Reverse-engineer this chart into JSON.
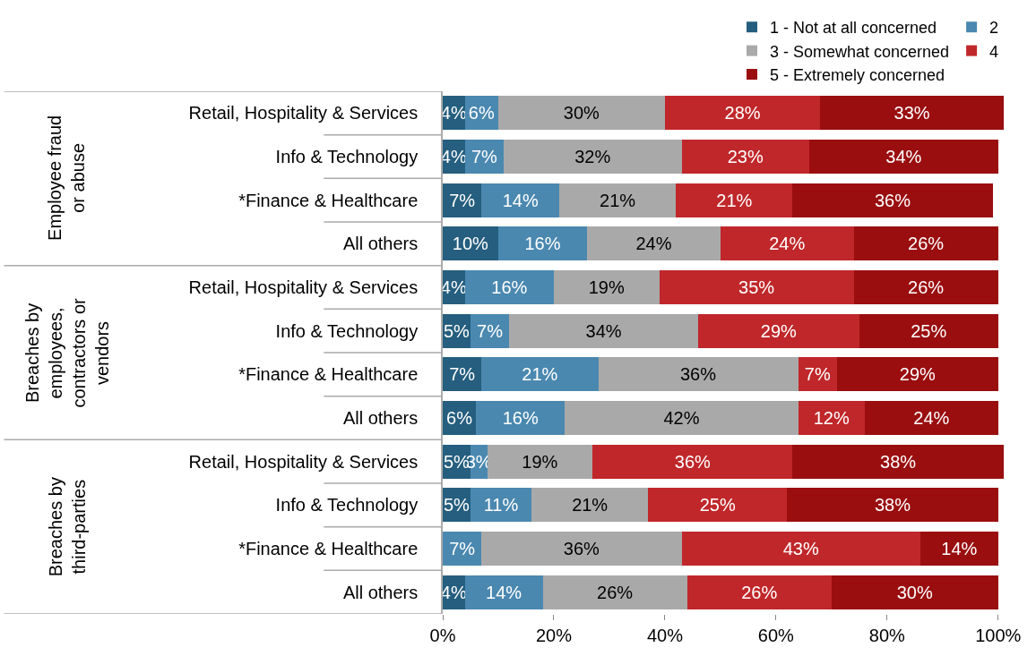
{
  "chart_data": {
    "type": "bar",
    "orientation": "horizontal",
    "stacked": true,
    "legend": "top",
    "categories": [
      "Retail, Hospitality & Services",
      "Info & Technology",
      "*Finance & Healthcare",
      "All others",
      "Retail, Hospitality & Services",
      "Info & Technology",
      "*Finance & Healthcare",
      "All others",
      "Retail, Hospitality & Services",
      "Info & Technology",
      "*Finance & Healthcare",
      "All others"
    ],
    "annotations": [
      "Employee fraud or abuse",
      "Breaches by employees, contractors or vendors",
      "Breaches by third-parties"
    ],
    "series": [
      {
        "name": "1 - Not at all concerned",
        "color": "#255e7e",
        "values": [
          4,
          4,
          7,
          10,
          4,
          5,
          7,
          6,
          5,
          5,
          0,
          4
        ],
        "value_labels": [
          "4%",
          "4%",
          "7%",
          "10%",
          "4%",
          "5%",
          "7%",
          "6%",
          "5%",
          "5%",
          null,
          "4%"
        ]
      },
      {
        "name": "2",
        "color": "#4a88b0",
        "values": [
          6,
          7,
          14,
          16,
          16,
          7,
          21,
          16,
          3,
          11,
          7,
          14
        ],
        "value_labels": [
          "6%",
          "7%",
          "14%",
          "16%",
          "16%",
          "7%",
          "21%",
          "16%",
          "3%",
          "11%",
          "7%",
          "14%"
        ]
      },
      {
        "name": "3 - Somewhat concerned",
        "color": "#a9a9a9",
        "values": [
          30,
          32,
          21,
          24,
          19,
          34,
          36,
          42,
          19,
          21,
          36,
          26
        ],
        "value_labels": [
          "30%",
          "32%",
          "21%",
          "24%",
          "19%",
          "34%",
          "36%",
          "42%",
          "19%",
          "21%",
          "36%",
          "26%"
        ]
      },
      {
        "name": "4",
        "color": "#c0272a",
        "values": [
          28,
          23,
          21,
          24,
          35,
          29,
          7,
          12,
          36,
          25,
          43,
          26
        ],
        "value_labels": [
          "28%",
          "23%",
          "21%",
          "24%",
          "35%",
          "29%",
          "7%",
          "12%",
          "36%",
          "25%",
          "43%",
          "26%"
        ]
      },
      {
        "name": "5 - Extremely concerned",
        "color": "#9a0e10",
        "values": [
          33,
          34,
          36,
          26,
          26,
          25,
          29,
          24,
          38,
          38,
          14,
          30
        ],
        "value_labels": [
          "33%",
          "34%",
          "36%",
          "26%",
          "26%",
          "25%",
          "29%",
          "24%",
          "38%",
          "38%",
          "14%",
          "30%"
        ]
      }
    ],
    "xlim": [
      0,
      101
    ],
    "xticks": [
      {
        "value": 0,
        "label": "0%"
      },
      {
        "value": 20,
        "label": "20%"
      },
      {
        "value": 40,
        "label": "40%"
      },
      {
        "value": 60,
        "label": "60%"
      },
      {
        "value": 80,
        "label": "80%"
      },
      {
        "value": 100,
        "label": "100%"
      }
    ]
  }
}
